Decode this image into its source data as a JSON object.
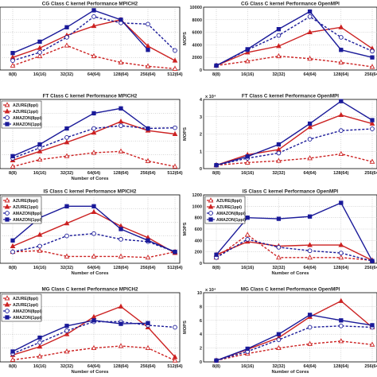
{
  "colors": {
    "azure": "#cc2222",
    "amazon": "#1a1a99"
  },
  "series_style": [
    {
      "color": "#cc2222",
      "dash": "3,2",
      "marker": "triangle",
      "fill": false
    },
    {
      "color": "#cc2222",
      "dash": "",
      "marker": "triangle",
      "fill": true
    },
    {
      "color": "#1a1a99",
      "dash": "3,2",
      "marker": "circle",
      "fill": false
    },
    {
      "color": "#1a1a99",
      "dash": "",
      "marker": "square",
      "fill": true
    }
  ],
  "chart_data": [
    {
      "type": "line",
      "title": "CG Class C kernel Performance MPICH2",
      "xlabel": "",
      "ylabel": "",
      "categories": [
        "8(8)",
        "16(16)",
        "32(32)",
        "64(64)",
        "128(64)",
        "256(64)",
        "512(64)"
      ],
      "yticks": [],
      "ylim": [
        0,
        10000
      ],
      "legend": "none",
      "grid": true,
      "series": [
        {
          "values": [
            700,
            2200,
            3900,
            2200,
            1200,
            600,
            200
          ]
        },
        {
          "values": [
            2000,
            3500,
            5500,
            7000,
            8000,
            3800,
            1500
          ]
        },
        {
          "values": [
            1500,
            2800,
            5200,
            8500,
            7500,
            7300,
            3100
          ]
        },
        {
          "values": [
            2700,
            4500,
            6800,
            9500,
            8000,
            3200,
            null
          ]
        }
      ]
    },
    {
      "type": "line",
      "title": "CG Class C kernel Performance OpenMPI",
      "xlabel": "",
      "ylabel": "MOPS",
      "categories": [
        "8(8)",
        "16(16)",
        "32(32)",
        "64(64)",
        "128(64)",
        "256(64)"
      ],
      "yticks": [
        "0",
        "2000",
        "4000",
        "6000",
        "8000",
        "10000"
      ],
      "ylim": [
        0,
        10000
      ],
      "legend": "none",
      "grid": true,
      "series": [
        {
          "values": [
            700,
            1400,
            2200,
            1800,
            1200,
            500
          ]
        },
        {
          "values": [
            700,
            2800,
            3800,
            6000,
            6800,
            3400
          ]
        },
        {
          "values": [
            700,
            3200,
            5500,
            8500,
            5200,
            3000
          ]
        },
        {
          "values": [
            700,
            3300,
            6500,
            9300,
            3200,
            2000
          ]
        }
      ]
    },
    {
      "type": "line",
      "title": "FT Class C kernel Performance MPICH2",
      "xlabel": "Number of Cores",
      "ylabel": "",
      "categories": [
        "8(8)",
        "16(16)",
        "32(32)",
        "64(64)",
        "128(64)",
        "256(64)",
        "512(64)"
      ],
      "yticks": [],
      "ylim": [
        0,
        10000
      ],
      "legend": "top-left",
      "grid": true,
      "series": [
        {
          "name": "AZURE(8ppi)",
          "values": [
            300,
            1300,
            1800,
            2300,
            2500,
            1100,
            300
          ]
        },
        {
          "name": "AZURE(1ppi)",
          "values": [
            1200,
            2500,
            3800,
            5200,
            6800,
            5500,
            5000
          ]
        },
        {
          "name": "AMAZON(8ppi)",
          "values": [
            1500,
            3000,
            4500,
            5800,
            6200,
            5800,
            5900
          ]
        },
        {
          "name": "AMAZON(1ppi)",
          "values": [
            1800,
            3500,
            5800,
            8000,
            8700,
            5800,
            null
          ]
        }
      ]
    },
    {
      "type": "line",
      "title": "FT Class C kernel Performance OpenMPI",
      "xlabel": "",
      "ylabel": "MOPS",
      "multiplier": "x 10⁴",
      "categories": [
        "8(8)",
        "16(16)",
        "32(32)",
        "64(64)",
        "128(64)",
        "256(64)"
      ],
      "yticks": [
        "0",
        "1",
        "2",
        "3",
        "4"
      ],
      "ylim": [
        0,
        4
      ],
      "legend": "none",
      "grid": true,
      "series": [
        {
          "values": [
            0.2,
            0.35,
            0.45,
            0.6,
            0.85,
            0.4
          ]
        },
        {
          "values": [
            0.2,
            0.8,
            1.1,
            2.4,
            3.1,
            2.6
          ]
        },
        {
          "values": [
            0.2,
            0.6,
            0.9,
            1.7,
            2.2,
            2.3
          ]
        },
        {
          "values": [
            0.2,
            0.7,
            1.4,
            2.6,
            3.9,
            2.8
          ]
        }
      ]
    },
    {
      "type": "line",
      "title": "IS Class C kernel Performance MPICH2",
      "xlabel": "Number of Cores",
      "ylabel": "",
      "categories": [
        "8(8)",
        "16(16)",
        "32(32)",
        "64(64)",
        "128(64)",
        "256(64)",
        "512(64)"
      ],
      "yticks": [],
      "ylim": [
        0,
        1200
      ],
      "legend": "top-left",
      "grid": true,
      "series": [
        {
          "name": "AZURE(8ppi)",
          "values": [
            200,
            220,
            120,
            120,
            120,
            100,
            200
          ]
        },
        {
          "name": "AZURE(1ppi)",
          "values": [
            300,
            500,
            700,
            900,
            650,
            450,
            180
          ]
        },
        {
          "name": "AMAZON(8ppi)",
          "values": [
            200,
            300,
            480,
            520,
            420,
            380,
            200
          ]
        },
        {
          "name": "AMAZON(1ppi)",
          "values": [
            400,
            800,
            1000,
            1000,
            600,
            400,
            200
          ]
        }
      ]
    },
    {
      "type": "line",
      "title": "IS Class C kernel Performance OpenMPI",
      "xlabel": "Number of Cores",
      "ylabel": "MOPS",
      "categories": [
        "8(8)",
        "16(16)",
        "32(32)",
        "64(64)",
        "128(64)",
        "256(64)"
      ],
      "yticks": [
        "0",
        "200",
        "400",
        "600",
        "800",
        "1000",
        "1200"
      ],
      "ylim": [
        0,
        1200
      ],
      "legend": "top-left",
      "grid": true,
      "series": [
        {
          "name": "AZURE(8ppi)",
          "values": [
            100,
            500,
            100,
            100,
            100,
            50
          ]
        },
        {
          "name": "AZURE(1ppi)",
          "values": [
            150,
            380,
            300,
            320,
            320,
            50
          ]
        },
        {
          "name": "AMAZON(8ppi)",
          "values": [
            100,
            420,
            280,
            220,
            180,
            40
          ]
        },
        {
          "name": "AMAZON(1ppi)",
          "values": [
            150,
            800,
            780,
            820,
            1060,
            40
          ]
        }
      ]
    },
    {
      "type": "line",
      "title": "MG Class C kernel Performance MPICH2",
      "xlabel": "Number of Cores",
      "ylabel": "",
      "categories": [
        "8(8)",
        "16(16)",
        "32(32)",
        "64(64)",
        "128(64)",
        "256(64)",
        "512(64)"
      ],
      "yticks": [],
      "ylim": [
        0,
        10000
      ],
      "legend": "top-left",
      "grid": true,
      "series": [
        {
          "name": "AZURE(8ppi)",
          "values": [
            300,
            800,
            1500,
            2000,
            2300,
            2000,
            200
          ]
        },
        {
          "name": "AZURE(1ppi)",
          "values": [
            1000,
            2200,
            4000,
            6500,
            8000,
            5000,
            700
          ]
        },
        {
          "name": "AMAZON(8ppi)",
          "values": [
            1200,
            2800,
            4500,
            5800,
            5800,
            5300,
            5000
          ]
        },
        {
          "name": "AMAZON(1ppi)",
          "values": [
            1500,
            3500,
            5200,
            6000,
            5500,
            5600,
            null
          ]
        }
      ]
    },
    {
      "type": "line",
      "title": "MG Class C kernel Performance OpenMPI",
      "xlabel": "Number of Cores",
      "ylabel": "MOPS",
      "multiplier": "x 10⁴",
      "categories": [
        "8(8)",
        "16(16)",
        "32(32)",
        "64(64)",
        "128(64)",
        "256(64)"
      ],
      "yticks": [
        "0",
        "2",
        "4",
        "6",
        "8",
        "10"
      ],
      "ylim": [
        0,
        10
      ],
      "legend": "none",
      "grid": true,
      "series": [
        {
          "values": [
            0.2,
            1.2,
            2.0,
            2.6,
            3.0,
            2.5
          ]
        },
        {
          "values": [
            0.2,
            1.8,
            3.5,
            6.5,
            8.8,
            5.0
          ]
        },
        {
          "values": [
            0.2,
            1.5,
            3.2,
            5.0,
            5.2,
            5.0
          ]
        },
        {
          "values": [
            0.2,
            1.9,
            4.0,
            6.8,
            6.0,
            5.3
          ]
        }
      ]
    }
  ]
}
